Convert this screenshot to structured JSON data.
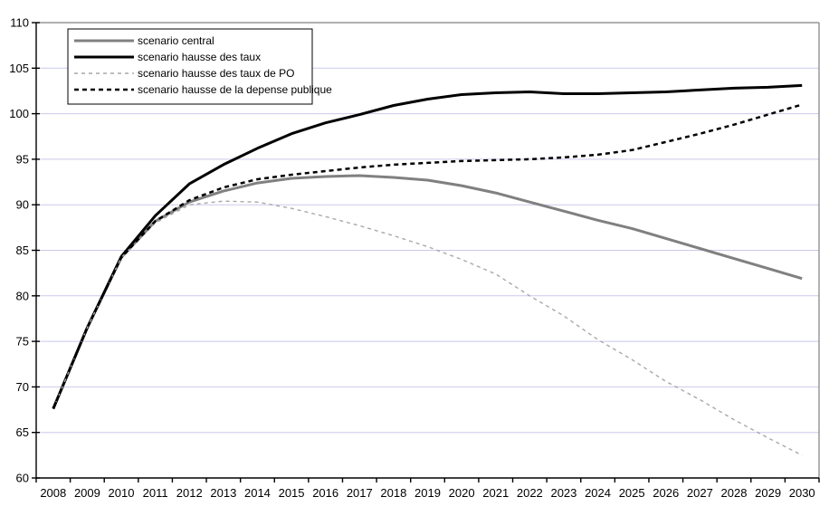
{
  "chart_data": {
    "type": "line",
    "title": "",
    "xlabel": "",
    "ylabel": "",
    "x_categories": [
      "2008",
      "2009",
      "2010",
      "2011",
      "2012",
      "2013",
      "2014",
      "2015",
      "2016",
      "2017",
      "2018",
      "2019",
      "2020",
      "2021",
      "2022",
      "2023",
      "2024",
      "2025",
      "2026",
      "2027",
      "2028",
      "2029",
      "2030"
    ],
    "ylim": [
      60,
      110
    ],
    "ytick_step": 5,
    "yticks": [
      60,
      65,
      70,
      75,
      80,
      85,
      90,
      95,
      100,
      105,
      110
    ],
    "grid": "horizontal",
    "legend_position": "top-left-inside",
    "series": [
      {
        "name": "scenario central",
        "color": "#808080",
        "line_style": "solid",
        "line_width": 3,
        "values": [
          67.6,
          76.5,
          84.2,
          88.2,
          90.3,
          91.5,
          92.4,
          92.9,
          93.1,
          93.2,
          93.0,
          92.7,
          92.1,
          91.3,
          90.3,
          89.3,
          88.3,
          87.4,
          86.3,
          85.2,
          84.1,
          83.0,
          81.9
        ]
      },
      {
        "name": "scenario hausse des taux",
        "color": "#000000",
        "line_style": "solid",
        "line_width": 3,
        "values": [
          67.6,
          76.5,
          84.3,
          88.8,
          92.3,
          94.4,
          96.2,
          97.8,
          99.0,
          99.9,
          100.9,
          101.6,
          102.1,
          102.3,
          102.4,
          102.2,
          102.2,
          102.3,
          102.4,
          102.6,
          102.8,
          102.9,
          103.1
        ]
      },
      {
        "name": "scenario hausse des taux de PO",
        "color": "#a8a8a8",
        "line_style": "dashed",
        "line_width": 1.4,
        "dash": "4 4",
        "values": [
          67.6,
          76.5,
          84.2,
          88.0,
          90.0,
          90.4,
          90.3,
          89.6,
          88.7,
          87.7,
          86.6,
          85.4,
          84.0,
          82.4,
          80.0,
          77.8,
          75.2,
          73.0,
          70.6,
          68.6,
          66.4,
          64.4,
          62.5
        ]
      },
      {
        "name": "scenario hausse de la depense publique",
        "color": "#000000",
        "line_style": "dashed",
        "line_width": 2.5,
        "dash": "5 4",
        "values": [
          67.6,
          76.5,
          84.2,
          88.2,
          90.5,
          91.9,
          92.8,
          93.3,
          93.7,
          94.1,
          94.4,
          94.6,
          94.8,
          94.9,
          95.0,
          95.2,
          95.5,
          96.0,
          96.9,
          97.8,
          98.8,
          99.9,
          101.0
        ]
      }
    ],
    "colors": {
      "background": "#ffffff",
      "gridline": "#c9c9ec",
      "axis": "#000000",
      "plot_border": "#808080",
      "legend_border": "#000000",
      "legend_background": "#ffffff"
    }
  }
}
